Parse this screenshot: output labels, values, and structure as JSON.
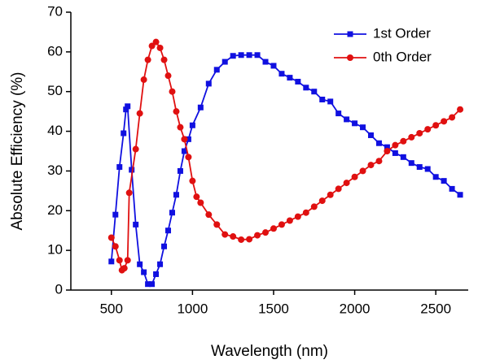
{
  "chart_data": {
    "type": "line",
    "x_label": "Wavelength (nm)",
    "y_label": "Absolute Efficiency (%)",
    "xlim": [
      250,
      2700
    ],
    "xticks": [
      500,
      1000,
      1500,
      2000,
      2500
    ],
    "ylim": [
      0,
      70
    ],
    "yticks": [
      0,
      10,
      20,
      30,
      40,
      50,
      60,
      70
    ],
    "legend": "top-right",
    "series": [
      {
        "name": "1st Order",
        "color": "#1010e0",
        "marker": "square",
        "x": [
          500,
          525,
          550,
          575,
          590,
          600,
          625,
          650,
          675,
          700,
          725,
          750,
          775,
          800,
          825,
          850,
          875,
          900,
          925,
          950,
          975,
          1000,
          1050,
          1100,
          1150,
          1200,
          1250,
          1300,
          1350,
          1400,
          1450,
          1500,
          1550,
          1600,
          1650,
          1700,
          1750,
          1800,
          1850,
          1900,
          1950,
          2000,
          2050,
          2100,
          2150,
          2200,
          2250,
          2300,
          2350,
          2400,
          2450,
          2500,
          2550,
          2600,
          2650
        ],
        "values": [
          7.2,
          19,
          31,
          39.5,
          45.5,
          46.3,
          30.3,
          16.5,
          6.5,
          4.5,
          1.5,
          1.5,
          4,
          6.5,
          11,
          15,
          19.5,
          24,
          30,
          35,
          38,
          41.5,
          46,
          52,
          55.5,
          57.5,
          59,
          59.2,
          59.2,
          59.2,
          57.5,
          56.5,
          54.5,
          53.5,
          52.5,
          51,
          50,
          48,
          47.5,
          44.5,
          43,
          42,
          41,
          39,
          37,
          36,
          34.5,
          33.5,
          32,
          31,
          30.5,
          28.5,
          27.5,
          25.5,
          24
        ]
      },
      {
        "name": "0th Order",
        "color": "#e01010",
        "marker": "circle",
        "x": [
          500,
          525,
          550,
          565,
          580,
          600,
          610,
          650,
          675,
          700,
          725,
          750,
          775,
          800,
          825,
          850,
          875,
          900,
          925,
          950,
          975,
          1000,
          1025,
          1050,
          1100,
          1150,
          1200,
          1250,
          1300,
          1350,
          1400,
          1450,
          1500,
          1550,
          1600,
          1650,
          1700,
          1750,
          1800,
          1850,
          1900,
          1950,
          2000,
          2050,
          2100,
          2150,
          2200,
          2250,
          2300,
          2350,
          2400,
          2450,
          2500,
          2550,
          2600,
          2650
        ],
        "values": [
          13.2,
          11,
          7.5,
          5,
          5.5,
          7.5,
          24.5,
          35.5,
          44.5,
          53,
          58,
          61.5,
          62.5,
          61,
          58,
          54,
          50,
          45,
          41,
          38,
          33.5,
          27.5,
          23.5,
          22,
          19,
          16.5,
          14,
          13.5,
          12.7,
          12.8,
          13.8,
          14.5,
          15.5,
          16.5,
          17.5,
          18.5,
          19.5,
          21,
          22.5,
          24,
          25.5,
          27,
          28.5,
          30,
          31.5,
          32.5,
          35,
          36.5,
          37.5,
          38.5,
          39.5,
          40.5,
          41.5,
          42.5,
          43.5,
          45.5
        ]
      }
    ]
  }
}
